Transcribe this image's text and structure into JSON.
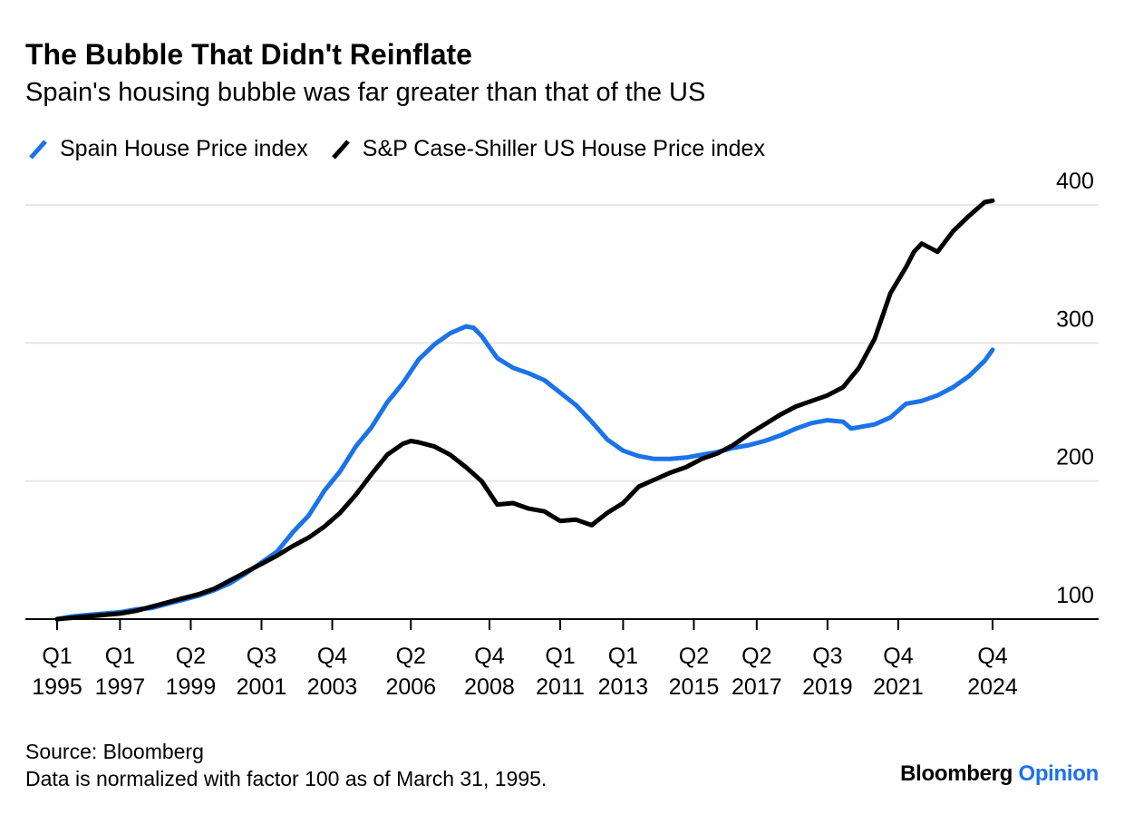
{
  "title": "The Bubble That Didn't Reinflate",
  "subtitle": "Spain's housing bubble was far greater than that of the US",
  "footer": {
    "source": "Source: Bloomberg",
    "note": "Data is normalized with factor 100 as of March 31, 1995."
  },
  "brand": {
    "name": "Bloomberg",
    "suffix": "Opinion"
  },
  "colors": {
    "spain": "#1a73e8",
    "us": "#000000",
    "grid": "#e6e6e6",
    "axis": "#000000"
  },
  "chart_data": {
    "type": "line",
    "ylim": [
      100,
      400
    ],
    "yticks": [
      100,
      200,
      300,
      400
    ],
    "x_range": [
      1995.0,
      2024.75
    ],
    "x_ticks": [
      {
        "x": 1995.0,
        "q": "Q1",
        "y": "1995"
      },
      {
        "x": 1997.0,
        "q": "Q1",
        "y": "1997"
      },
      {
        "x": 1999.25,
        "q": "Q2",
        "y": "1999"
      },
      {
        "x": 2001.5,
        "q": "Q3",
        "y": "2001"
      },
      {
        "x": 2003.75,
        "q": "Q4",
        "y": "2003"
      },
      {
        "x": 2006.25,
        "q": "Q2",
        "y": "2006"
      },
      {
        "x": 2008.75,
        "q": "Q4",
        "y": "2008"
      },
      {
        "x": 2011.0,
        "q": "Q1",
        "y": "2011"
      },
      {
        "x": 2013.0,
        "q": "Q1",
        "y": "2013"
      },
      {
        "x": 2015.25,
        "q": "Q2",
        "y": "2015"
      },
      {
        "x": 2017.25,
        "q": "Q2",
        "y": "2017"
      },
      {
        "x": 2019.5,
        "q": "Q3",
        "y": "2019"
      },
      {
        "x": 2021.75,
        "q": "Q4",
        "y": "2021"
      },
      {
        "x": 2024.75,
        "q": "Q4",
        "y": "2024"
      }
    ],
    "grid": true,
    "legend_position": "top-left",
    "series": [
      {
        "name": "Spain House Price index",
        "color": "#1a73e8",
        "points": [
          [
            1995.0,
            100
          ],
          [
            1995.5,
            102
          ],
          [
            1996.0,
            103
          ],
          [
            1996.5,
            104
          ],
          [
            1997.0,
            105
          ],
          [
            1997.5,
            107
          ],
          [
            1998.0,
            108
          ],
          [
            1998.5,
            111
          ],
          [
            1999.0,
            114
          ],
          [
            1999.5,
            117
          ],
          [
            2000.0,
            121
          ],
          [
            2000.5,
            126
          ],
          [
            2001.0,
            133
          ],
          [
            2001.5,
            141
          ],
          [
            2002.0,
            149
          ],
          [
            2002.5,
            163
          ],
          [
            2003.0,
            175
          ],
          [
            2003.5,
            193
          ],
          [
            2004.0,
            207
          ],
          [
            2004.5,
            225
          ],
          [
            2005.0,
            239
          ],
          [
            2005.5,
            257
          ],
          [
            2006.0,
            271
          ],
          [
            2006.5,
            288
          ],
          [
            2007.0,
            299
          ],
          [
            2007.5,
            307
          ],
          [
            2008.0,
            312
          ],
          [
            2008.25,
            311
          ],
          [
            2008.5,
            305
          ],
          [
            2009.0,
            289
          ],
          [
            2009.5,
            282
          ],
          [
            2010.0,
            278
          ],
          [
            2010.5,
            273
          ],
          [
            2011.0,
            264
          ],
          [
            2011.5,
            255
          ],
          [
            2012.0,
            243
          ],
          [
            2012.5,
            230
          ],
          [
            2013.0,
            222
          ],
          [
            2013.5,
            218
          ],
          [
            2014.0,
            216
          ],
          [
            2014.5,
            216
          ],
          [
            2015.0,
            217
          ],
          [
            2015.5,
            219
          ],
          [
            2016.0,
            221
          ],
          [
            2016.5,
            224
          ],
          [
            2017.0,
            226
          ],
          [
            2017.5,
            229
          ],
          [
            2018.0,
            233
          ],
          [
            2018.5,
            238
          ],
          [
            2019.0,
            242
          ],
          [
            2019.5,
            244
          ],
          [
            2020.0,
            243
          ],
          [
            2020.25,
            238
          ],
          [
            2020.5,
            239
          ],
          [
            2021.0,
            241
          ],
          [
            2021.5,
            246
          ],
          [
            2022.0,
            256
          ],
          [
            2022.5,
            258
          ],
          [
            2023.0,
            262
          ],
          [
            2023.5,
            268
          ],
          [
            2024.0,
            276
          ],
          [
            2024.5,
            287
          ],
          [
            2024.75,
            295
          ]
        ]
      },
      {
        "name": "S&P Case-Shiller US House Price index",
        "color": "#000000",
        "points": [
          [
            1995.0,
            100
          ],
          [
            1995.5,
            101
          ],
          [
            1996.0,
            102
          ],
          [
            1996.5,
            103
          ],
          [
            1997.0,
            104
          ],
          [
            1997.5,
            106
          ],
          [
            1998.0,
            109
          ],
          [
            1998.5,
            112
          ],
          [
            1999.0,
            115
          ],
          [
            1999.5,
            118
          ],
          [
            2000.0,
            122
          ],
          [
            2000.5,
            128
          ],
          [
            2001.0,
            134
          ],
          [
            2001.5,
            140
          ],
          [
            2002.0,
            146
          ],
          [
            2002.5,
            153
          ],
          [
            2003.0,
            159
          ],
          [
            2003.5,
            167
          ],
          [
            2004.0,
            177
          ],
          [
            2004.5,
            190
          ],
          [
            2005.0,
            205
          ],
          [
            2005.5,
            219
          ],
          [
            2006.0,
            227
          ],
          [
            2006.25,
            229
          ],
          [
            2006.5,
            228
          ],
          [
            2007.0,
            225
          ],
          [
            2007.5,
            219
          ],
          [
            2008.0,
            210
          ],
          [
            2008.5,
            200
          ],
          [
            2009.0,
            183
          ],
          [
            2009.5,
            184
          ],
          [
            2010.0,
            180
          ],
          [
            2010.5,
            178
          ],
          [
            2011.0,
            171
          ],
          [
            2011.5,
            172
          ],
          [
            2012.0,
            168
          ],
          [
            2012.5,
            177
          ],
          [
            2013.0,
            184
          ],
          [
            2013.5,
            196
          ],
          [
            2014.0,
            201
          ],
          [
            2014.5,
            206
          ],
          [
            2015.0,
            210
          ],
          [
            2015.5,
            216
          ],
          [
            2016.0,
            220
          ],
          [
            2016.5,
            226
          ],
          [
            2017.0,
            234
          ],
          [
            2017.5,
            241
          ],
          [
            2018.0,
            248
          ],
          [
            2018.5,
            254
          ],
          [
            2019.0,
            258
          ],
          [
            2019.5,
            262
          ],
          [
            2020.0,
            268
          ],
          [
            2020.5,
            282
          ],
          [
            2021.0,
            303
          ],
          [
            2021.5,
            336
          ],
          [
            2022.0,
            355
          ],
          [
            2022.25,
            366
          ],
          [
            2022.5,
            372
          ],
          [
            2023.0,
            366
          ],
          [
            2023.5,
            381
          ],
          [
            2024.0,
            392
          ],
          [
            2024.5,
            402
          ],
          [
            2024.75,
            403
          ]
        ]
      }
    ]
  }
}
